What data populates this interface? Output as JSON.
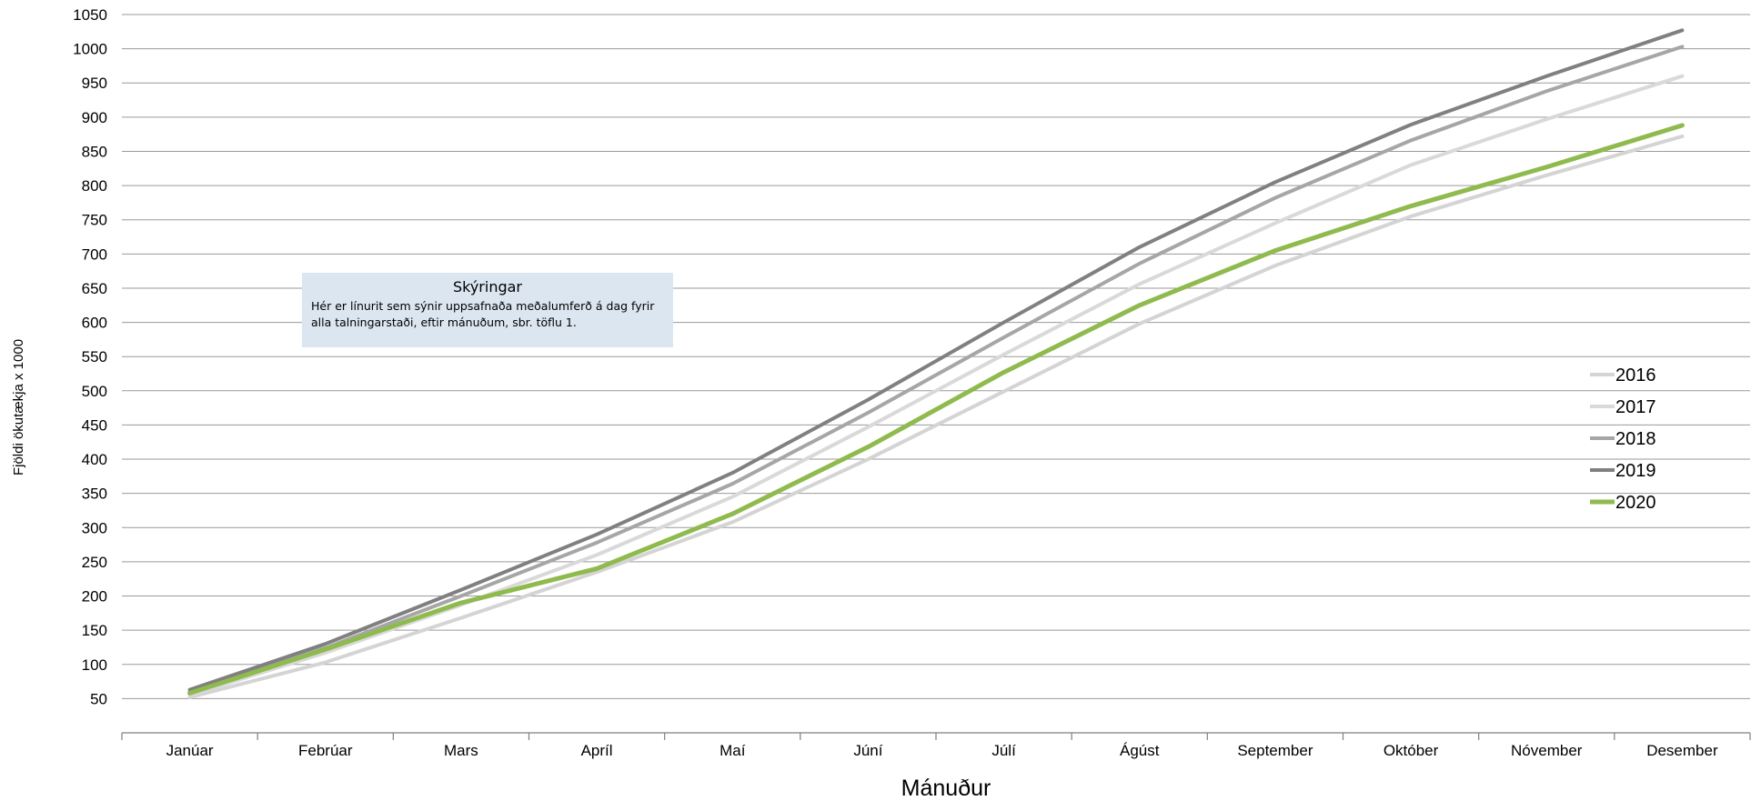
{
  "chart_data": {
    "type": "line",
    "categories": [
      "Janúar",
      "Febrúar",
      "Mars",
      "Apríl",
      "Maí",
      "Júní",
      "Júlí",
      "Ágúst",
      "September",
      "Október",
      "Nóvember",
      "Desember"
    ],
    "series": [
      {
        "name": "2016",
        "color": "#d4d4d4",
        "values": [
          52,
          103,
          168,
          235,
          308,
          400,
          499,
          598,
          683,
          755,
          815,
          872
        ]
      },
      {
        "name": "2017",
        "color": "#d9d9d9",
        "values": [
          55,
          117,
          187,
          260,
          345,
          447,
          553,
          656,
          745,
          830,
          897,
          960
        ]
      },
      {
        "name": "2018",
        "color": "#a6a6a6",
        "values": [
          60,
          124,
          200,
          278,
          364,
          468,
          578,
          686,
          782,
          866,
          938,
          1003
        ]
      },
      {
        "name": "2019",
        "color": "#808080",
        "values": [
          63,
          130,
          209,
          290,
          380,
          487,
          600,
          710,
          805,
          889,
          960,
          1027
        ]
      },
      {
        "name": "2020",
        "color": "#8fba4e",
        "values": [
          58,
          122,
          190,
          240,
          320,
          418,
          527,
          625,
          705,
          770,
          827,
          888
        ]
      }
    ],
    "yticks": [
      50,
      100,
      150,
      200,
      250,
      300,
      350,
      400,
      450,
      500,
      550,
      600,
      650,
      700,
      750,
      800,
      850,
      900,
      950,
      1000,
      1050
    ],
    "ylim": [
      0,
      1050
    ],
    "xlabel": "Mánuður",
    "ylabel": "Fjöldi ökutækja x 1000",
    "grid": true,
    "legend_position": "right"
  },
  "annotation": {
    "title": "Skýringar",
    "line1": "Hér er línurit sem sýnir uppsafnaða meðalumferð á dag fyrir",
    "line2": "alla talningarstaði, eftir mánuðum, sbr. töflu 1."
  }
}
